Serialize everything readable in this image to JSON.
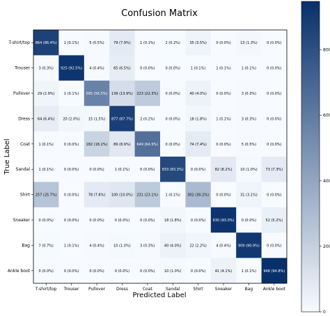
{
  "chart_data": {
    "type": "heatmap",
    "title": "Confusion Matrix",
    "xlabel": "Predicted Label",
    "ylabel": "True Label",
    "x_categories": [
      "T-shirt/top",
      "Trouser",
      "Pullover",
      "Dress",
      "Coat",
      "Sandal",
      "Shirt",
      "Sneaker",
      "Bag",
      "Ankle boot"
    ],
    "y_categories": [
      "T-shirt/top",
      "Trouser",
      "Pullover",
      "Dress",
      "Coat",
      "Sandal",
      "Shirt",
      "Sneaker",
      "Bag",
      "Ankle boot"
    ],
    "values": [
      [
        864,
        1,
        5,
        79,
        1,
        2,
        35,
        0,
        13,
        0
      ],
      [
        3,
        925,
        4,
        65,
        0,
        0,
        1,
        1,
        1,
        0
      ],
      [
        29,
        1,
        565,
        139,
        223,
        0,
        40,
        0,
        3,
        0
      ],
      [
        64,
        20,
        15,
        877,
        2,
        0,
        18,
        1,
        3,
        0
      ],
      [
        1,
        0,
        182,
        89,
        649,
        0,
        74,
        0,
        5,
        0
      ],
      [
        1,
        0,
        0,
        1,
        0,
        833,
        0,
        82,
        10,
        73
      ],
      [
        257,
        0,
        78,
        100,
        231,
        1,
        302,
        0,
        31,
        0
      ],
      [
        0,
        0,
        0,
        0,
        0,
        18,
        0,
        930,
        0,
        52
      ],
      [
        7,
        1,
        4,
        10,
        3,
        40,
        22,
        4,
        909,
        0
      ],
      [
        0,
        0,
        0,
        0,
        0,
        10,
        0,
        41,
        1,
        948
      ]
    ],
    "cell_labels": [
      [
        "864 (86.4%)",
        "1 (0.1%)",
        "5 (0.5%)",
        "79 (7.9%)",
        "1 (0.1%)",
        "2 (0.2%)",
        "35 (3.5%)",
        "0 (0.0%)",
        "13 (1.3%)",
        "0 (0.0%)"
      ],
      [
        "3 (0.3%)",
        "925 (92.5%)",
        "4 (0.4%)",
        "65 (6.5%)",
        "0 (0.0%)",
        "0 (0.0%)",
        "1 (0.1%)",
        "1 (0.1%)",
        "1 (0.1%)",
        "0 (0.0%)"
      ],
      [
        "29 (2.9%)",
        "1 (0.1%)",
        "565 (56.5%)",
        "139 (13.9%)",
        "223 (22.3%)",
        "0 (0.0%)",
        "40 (4.0%)",
        "0 (0.0%)",
        "3 (0.3%)",
        "0 (0.0%)"
      ],
      [
        "64 (6.4%)",
        "20 (2.0%)",
        "15 (1.5%)",
        "877 (87.7%)",
        "2 (0.2%)",
        "0 (0.0%)",
        "18 (1.8%)",
        "1 (0.1%)",
        "3 (0.3%)",
        "0 (0.0%)"
      ],
      [
        "1 (0.1%)",
        "0 (0.0%)",
        "182 (18.2%)",
        "89 (8.9%)",
        "649 (64.9%)",
        "0 (0.0%)",
        "74 (7.4%)",
        "0 (0.0%)",
        "5 (0.5%)",
        "0 (0.0%)"
      ],
      [
        "1 (0.1%)",
        "0 (0.0%)",
        "0 (0.0%)",
        "1 (0.1%)",
        "0 (0.0%)",
        "833 (83.3%)",
        "0 (0.0%)",
        "82 (8.2%)",
        "10 (1.0%)",
        "73 (7.3%)"
      ],
      [
        "257 (25.7%)",
        "0 (0.0%)",
        "78 (7.8%)",
        "100 (10.0%)",
        "231 (23.1%)",
        "1 (0.1%)",
        "302 (30.2%)",
        "0 (0.0%)",
        "31 (3.1%)",
        "0 (0.0%)"
      ],
      [
        "0 (0.0%)",
        "0 (0.0%)",
        "0 (0.0%)",
        "0 (0.0%)",
        "0 (0.0%)",
        "18 (1.8%)",
        "0 (0.0%)",
        "930 (93.0%)",
        "0 (0.0%)",
        "52 (5.2%)"
      ],
      [
        "7 (0.7%)",
        "1 (0.1%)",
        "4 (0.4%)",
        "10 (1.0%)",
        "3 (0.3%)",
        "40 (4.0%)",
        "22 (2.2%)",
        "4 (0.4%)",
        "909 (90.9%)",
        "0 (0.0%)"
      ],
      [
        "0 (0.0%)",
        "0 (0.0%)",
        "0 (0.0%)",
        "0 (0.0%)",
        "0 (0.0%)",
        "10 (1.0%)",
        "0 (0.0%)",
        "41 (4.1%)",
        "1 (0.1%)",
        "948 (94.8%)"
      ]
    ],
    "colorbar": {
      "min": 0,
      "max": 948,
      "ticks": [
        0,
        200,
        400,
        600,
        800
      ]
    },
    "colormap": {
      "low": "#f7fbff",
      "high": "#08306b",
      "text_dark": "#000000",
      "text_light": "#ffffff"
    },
    "grid": false
  }
}
